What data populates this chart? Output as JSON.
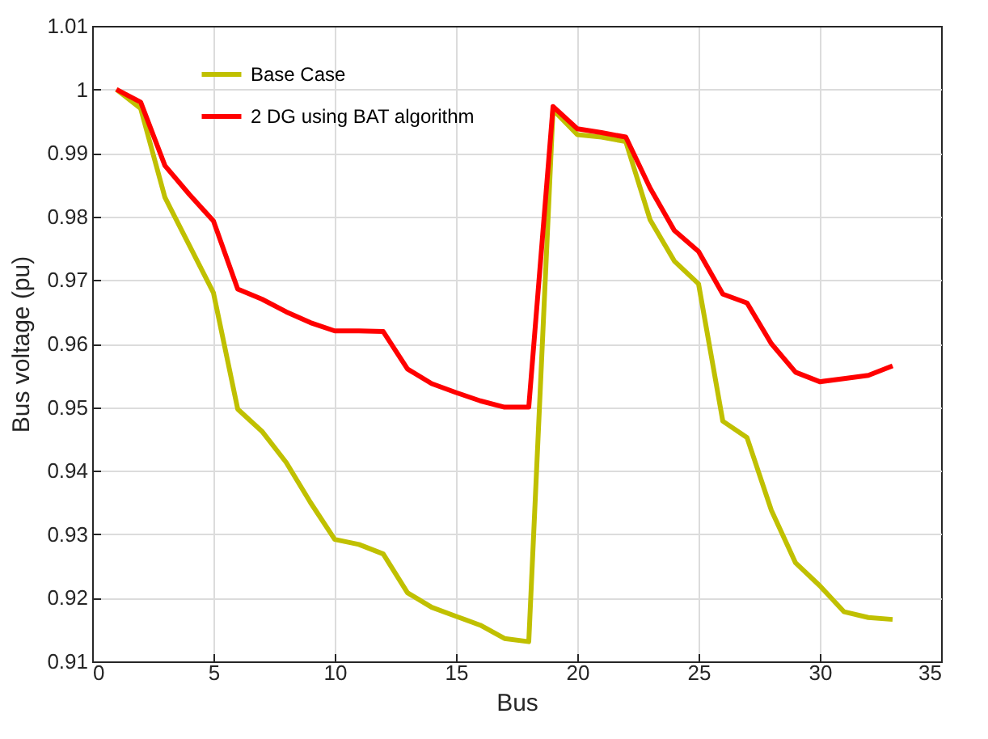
{
  "chart_data": {
    "type": "line",
    "xlabel": "Bus",
    "ylabel": "Bus voltage (pu)",
    "x": [
      1,
      2,
      3,
      4,
      5,
      6,
      7,
      8,
      9,
      10,
      11,
      12,
      13,
      14,
      15,
      16,
      17,
      18,
      19,
      20,
      21,
      22,
      23,
      24,
      25,
      26,
      27,
      28,
      29,
      30,
      31,
      32,
      33
    ],
    "series": [
      {
        "name": "Base Case",
        "color": "#c0c000",
        "values": [
          1.0,
          0.997,
          0.983,
          0.9755,
          0.968,
          0.9497,
          0.9462,
          0.9413,
          0.935,
          0.9292,
          0.9284,
          0.9269,
          0.9208,
          0.9185,
          0.9171,
          0.9157,
          0.9136,
          0.9131,
          0.9968,
          0.9929,
          0.9925,
          0.9918,
          0.9795,
          0.973,
          0.9694,
          0.9478,
          0.9452,
          0.9338,
          0.9255,
          0.9219,
          0.9178,
          0.9169,
          0.9166
        ]
      },
      {
        "name": "2 DG using BAT algorithm",
        "color": "#ff0000",
        "values": [
          1.0,
          0.998,
          0.988,
          0.9835,
          0.9793,
          0.9686,
          0.967,
          0.965,
          0.9633,
          0.962,
          0.962,
          0.9619,
          0.956,
          0.9537,
          0.9523,
          0.951,
          0.95,
          0.95,
          0.9973,
          0.9938,
          0.9932,
          0.9925,
          0.9845,
          0.9778,
          0.9745,
          0.9678,
          0.9664,
          0.96,
          0.9555,
          0.954,
          0.9545,
          0.955,
          0.9565
        ]
      }
    ],
    "xlim": [
      0,
      35
    ],
    "xticks": [
      0,
      5,
      10,
      15,
      20,
      25,
      30,
      35
    ],
    "ylim": [
      0.91,
      1.01
    ],
    "yticks": [
      0.91,
      0.92,
      0.93,
      0.94,
      0.95,
      0.96,
      0.97,
      0.98,
      0.99,
      1,
      1.01
    ],
    "grid": true,
    "legend": "top left",
    "marker": "none",
    "line_style": "solid"
  }
}
